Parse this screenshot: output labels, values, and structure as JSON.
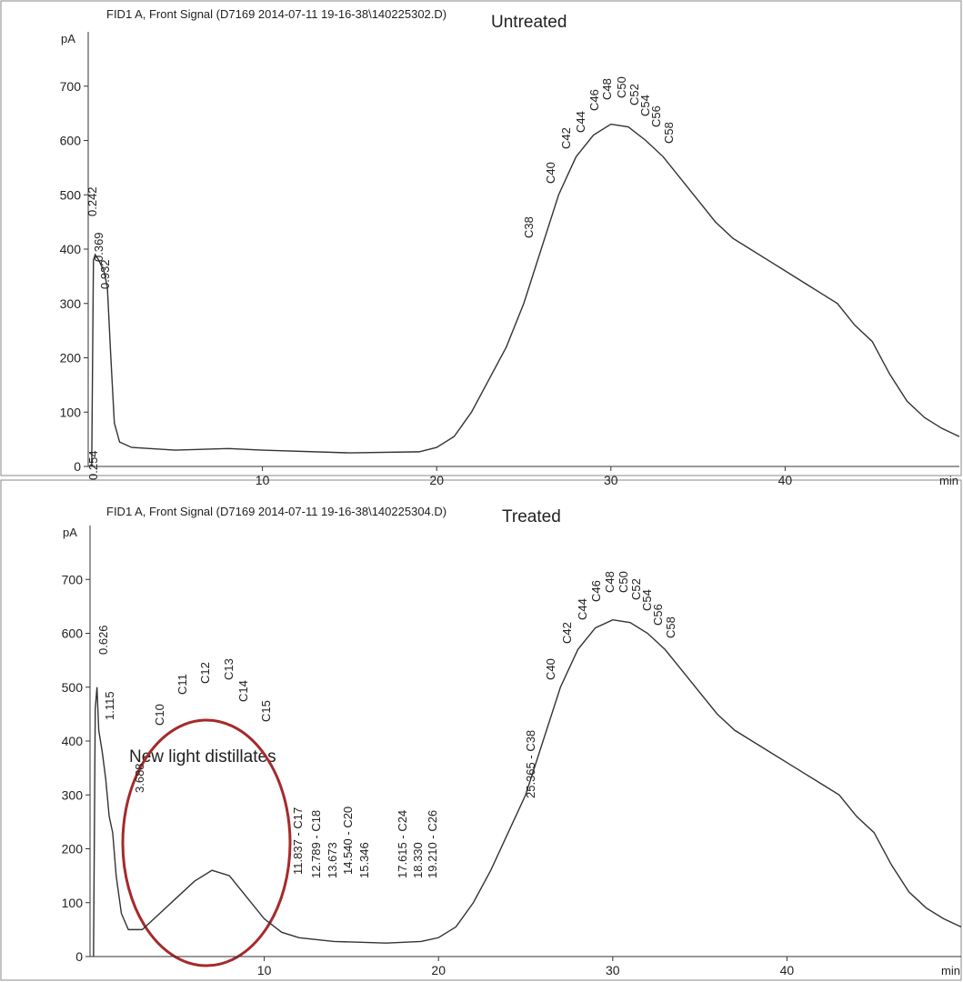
{
  "chart_data": [
    {
      "type": "line",
      "title": "FID1 A, Front Signal (D7169 2014-07-11 19-16-38\\140225302.D)",
      "annotation": "Untreated",
      "annotation_color": "#a52a2a",
      "x_label": "min",
      "y_label": "pA",
      "xlim": [
        0,
        50
      ],
      "ylim": [
        0,
        800
      ],
      "xticks": [
        10,
        20,
        30,
        40
      ],
      "yticks": [
        0,
        100,
        200,
        300,
        400,
        500,
        600,
        700
      ],
      "x": [
        0.2,
        0.3,
        0.4,
        0.6,
        0.9,
        1.1,
        1.3,
        1.5,
        1.8,
        2.5,
        5,
        8,
        10,
        15,
        19,
        20,
        21,
        22,
        23,
        24,
        25,
        26,
        27,
        28,
        29,
        30,
        31,
        32,
        33,
        34,
        35,
        36,
        37,
        38,
        39,
        40,
        41,
        42,
        43,
        44,
        45,
        46,
        47,
        48,
        49,
        50
      ],
      "series": [
        {
          "color": "#333333",
          "values": [
            0,
            380,
            390,
            380,
            360,
            330,
            200,
            80,
            45,
            35,
            30,
            33,
            30,
            25,
            27,
            35,
            55,
            100,
            160,
            220,
            300,
            400,
            500,
            570,
            610,
            630,
            625,
            600,
            570,
            530,
            490,
            450,
            420,
            400,
            380,
            360,
            340,
            320,
            300,
            260,
            230,
            170,
            120,
            90,
            70,
            55
          ]
        }
      ],
      "peaks": [
        "0.242",
        "0.369",
        "0.932",
        "C38",
        "C40",
        "C42",
        "C44",
        "C46",
        "C48",
        "C50",
        "C52",
        "C54",
        "C56",
        "C58"
      ]
    },
    {
      "type": "line",
      "title": "FID1 A, Front Signal (D7169 2014-07-11 19-16-38\\140225304.D)",
      "annotation": "Treated",
      "annotation_color": "#a52a2a",
      "note": "New light distillates",
      "x_label": "min",
      "y_label": "pA",
      "xlim": [
        0,
        50
      ],
      "ylim": [
        0,
        800
      ],
      "xticks": [
        10,
        20,
        30,
        40
      ],
      "yticks": [
        0,
        100,
        200,
        300,
        400,
        500,
        600,
        700
      ],
      "x": [
        0.2,
        0.3,
        0.4,
        0.5,
        0.7,
        0.9,
        1.1,
        1.3,
        1.5,
        1.8,
        2.2,
        3,
        4,
        5,
        6,
        7,
        8,
        9,
        10,
        11,
        12,
        14,
        17,
        19,
        20,
        21,
        22,
        23,
        24,
        25,
        26,
        27,
        28,
        29,
        30,
        31,
        32,
        33,
        34,
        35,
        36,
        37,
        38,
        39,
        40,
        41,
        42,
        43,
        44,
        45,
        46,
        47,
        48,
        49,
        50
      ],
      "series": [
        {
          "color": "#333333",
          "values": [
            0,
            460,
            500,
            420,
            380,
            330,
            260,
            230,
            150,
            80,
            50,
            50,
            80,
            110,
            140,
            160,
            150,
            110,
            70,
            45,
            35,
            28,
            25,
            28,
            35,
            55,
            100,
            160,
            230,
            300,
            400,
            500,
            570,
            610,
            625,
            620,
            600,
            570,
            530,
            490,
            450,
            420,
            400,
            380,
            360,
            340,
            320,
            300,
            260,
            230,
            170,
            120,
            90,
            70,
            55
          ]
        }
      ],
      "peaks": [
        "0.254",
        "0.626",
        "1.115",
        "3.688",
        "C10",
        "C11",
        "C12",
        "C13",
        "C14",
        "C15",
        "11.837 - C17",
        "12.789 - C18",
        "13.673",
        "14.540 - C20",
        "15.346",
        "17.615 - C24",
        "18.330",
        "19.210 - C26",
        "25.365 - C38",
        "C40",
        "C42",
        "C44",
        "C46",
        "C48",
        "C50",
        "C52",
        "C54",
        "C56",
        "C58"
      ]
    }
  ]
}
